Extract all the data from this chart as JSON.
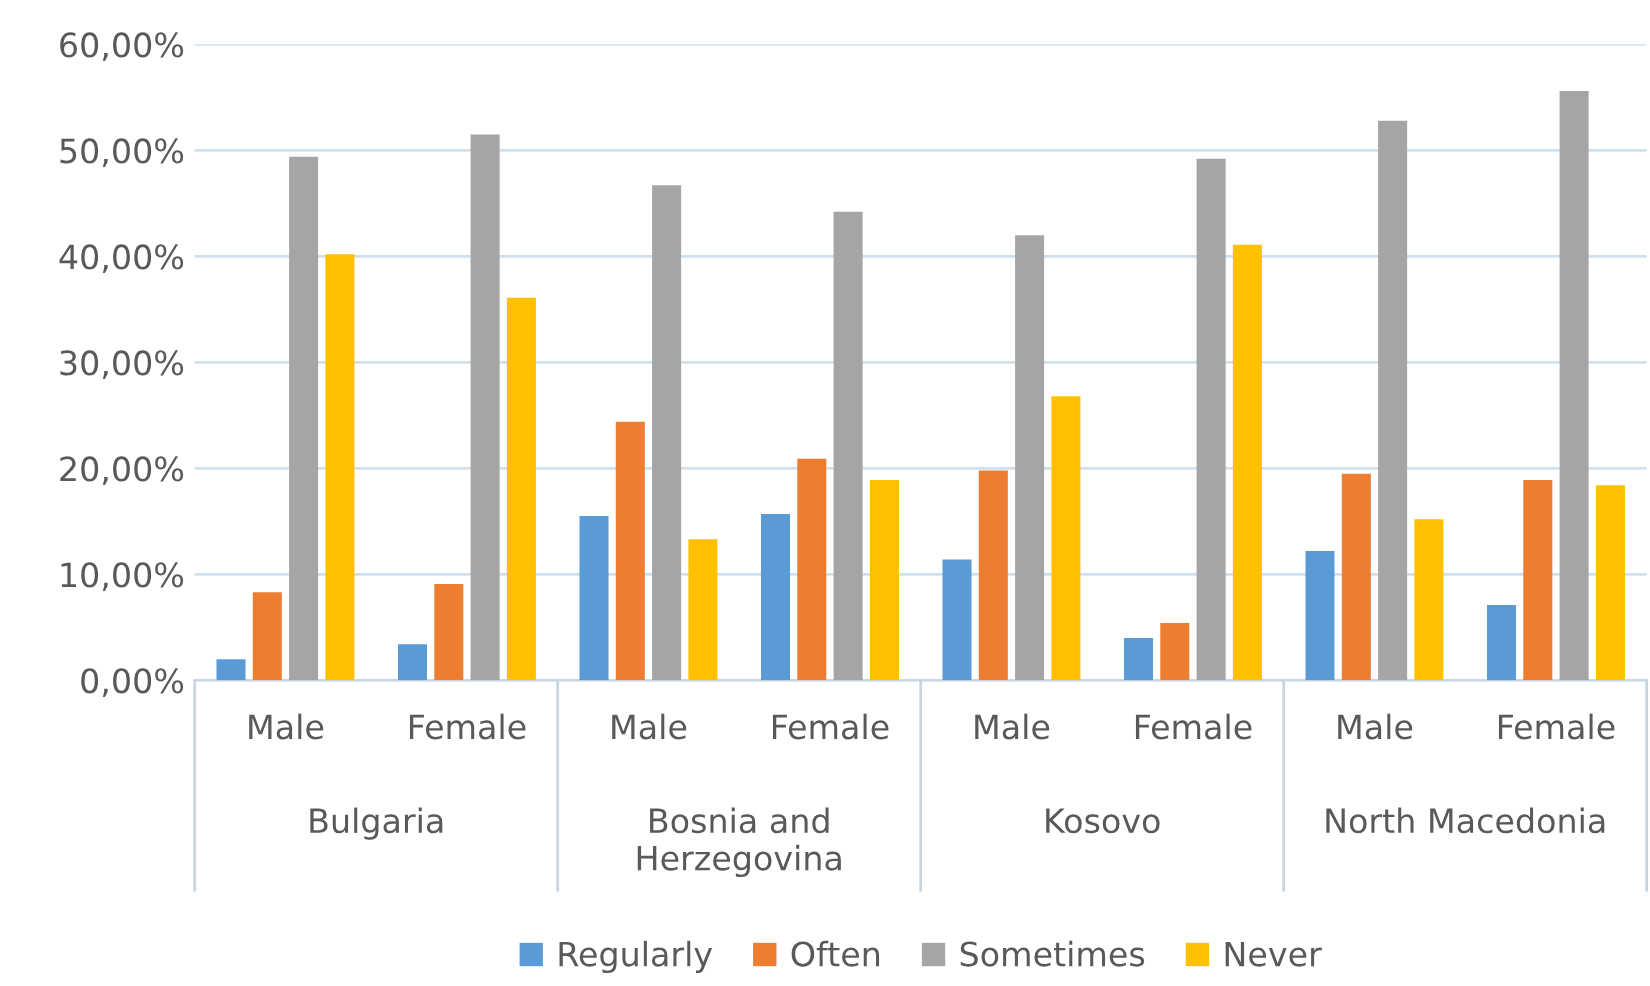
{
  "chart_data": {
    "type": "bar",
    "categories": [
      "Male",
      "Female",
      "Male",
      "Female",
      "Male",
      "Female",
      "Male",
      "Female"
    ],
    "annotations": [
      "Bulgaria",
      "Bosnia and\nHerzegovina",
      "Kosovo",
      "North Macedonia"
    ],
    "series": [
      {
        "name": "Regularly",
        "color": "#5b9bd5",
        "values": [
          2.0,
          3.4,
          15.5,
          15.7,
          11.4,
          4.0,
          12.2,
          7.1
        ]
      },
      {
        "name": "Often",
        "color": "#ed7d31",
        "values": [
          8.3,
          9.1,
          24.4,
          20.9,
          19.8,
          5.4,
          19.5,
          18.9
        ]
      },
      {
        "name": "Sometimes",
        "color": "#a5a5a5",
        "values": [
          49.4,
          51.5,
          46.7,
          44.2,
          42.0,
          49.2,
          52.8,
          55.6
        ]
      },
      {
        "name": "Never",
        "color": "#ffc000",
        "values": [
          40.2,
          36.1,
          13.3,
          18.9,
          26.8,
          41.1,
          15.2,
          18.4
        ]
      }
    ],
    "ylim": [
      0,
      60
    ],
    "yticks": [
      {
        "value": 0,
        "label": "0,00%"
      },
      {
        "value": 10,
        "label": "10,00%"
      },
      {
        "value": 20,
        "label": "20,00%"
      },
      {
        "value": 30,
        "label": "30,00%"
      },
      {
        "value": 40,
        "label": "40,00%"
      },
      {
        "value": 50,
        "label": "50,00%"
      },
      {
        "value": 60,
        "label": "60,00%"
      }
    ],
    "grid": "y",
    "legend": "bottom"
  }
}
